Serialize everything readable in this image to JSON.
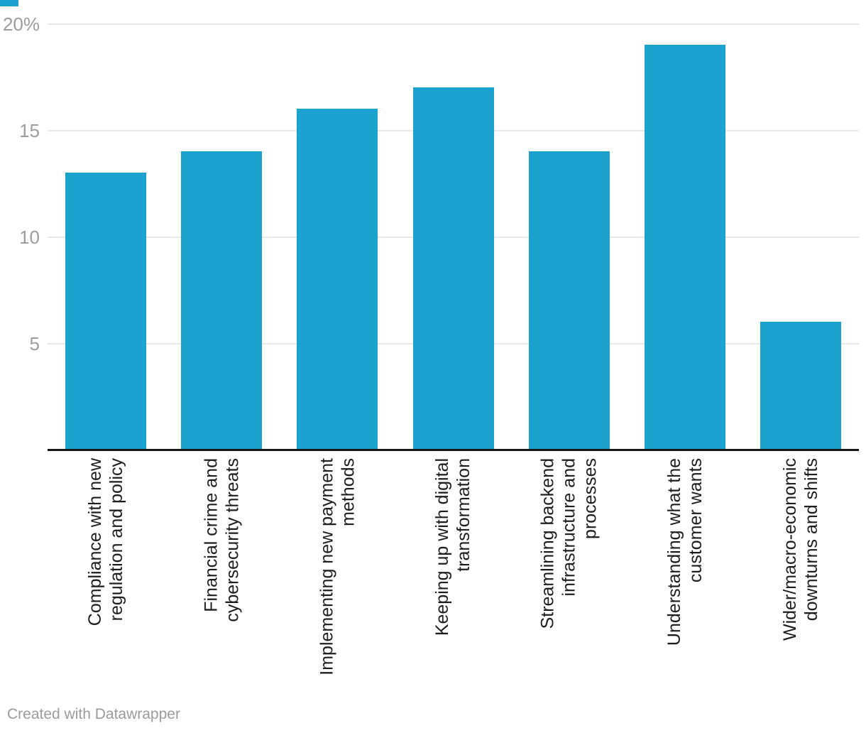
{
  "chart_data": {
    "type": "bar",
    "title": "",
    "xlabel": "",
    "ylabel": "",
    "unit": "%",
    "ylim": [
      0,
      20
    ],
    "grid": "horizontal-only",
    "legend": "none",
    "categories": [
      {
        "label": "Compliance with new regulation and policy",
        "lines": [
          "Compliance with new",
          "regulation and policy"
        ]
      },
      {
        "label": "Financial crime and cybersecurity threats",
        "lines": [
          "Financial crime and",
          "cybersecurity threats"
        ]
      },
      {
        "label": "Implementing new payment methods",
        "lines": [
          "Implementing new payment",
          "methods"
        ]
      },
      {
        "label": "Keeping up with digital transformation",
        "lines": [
          "Keeping up with digital",
          "transformation"
        ]
      },
      {
        "label": "Streamlining backend infrastructure and processes",
        "lines": [
          "Streamlining backend",
          "infrastructure and",
          "processes"
        ]
      },
      {
        "label": "Understanding what the customer wants",
        "lines": [
          "Understanding what the",
          "customer wants"
        ]
      },
      {
        "label": "Wider/macro-economic downturns and shifts",
        "lines": [
          "Wider/macro-economic",
          "downturns and shifts"
        ]
      }
    ],
    "values": [
      13,
      14,
      16,
      17,
      14,
      19,
      6
    ],
    "y_ticks": [
      {
        "value": 20,
        "label": "20%"
      },
      {
        "value": 15,
        "label": "15"
      },
      {
        "value": 10,
        "label": "10"
      },
      {
        "value": 5,
        "label": "5"
      }
    ],
    "bar_color": "#1ba2ce"
  },
  "colors": {
    "bar": "#1ba2ce",
    "axis_line": "#161616",
    "gridline": "#e9e9e9",
    "tick_label": "#9d9d9d",
    "category_label": "#1d1d1d",
    "footer_text": "#9b9b9b",
    "background": "#ffffff"
  },
  "footer": {
    "attribution": "Created with Datawrapper"
  }
}
